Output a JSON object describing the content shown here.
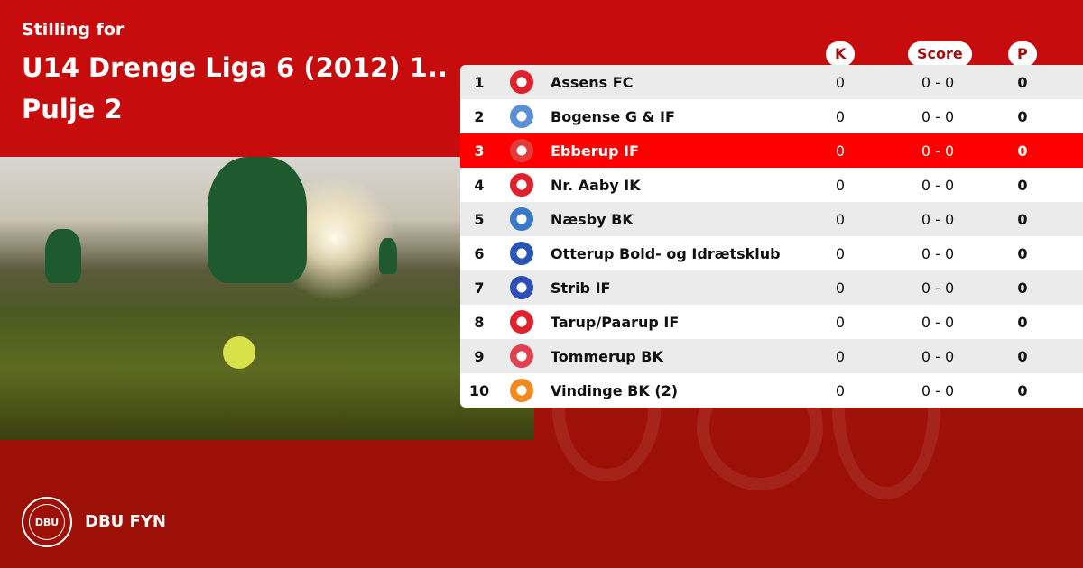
{
  "header": {
    "subtitle": "Stilling for",
    "title": "U14 Drenge Liga 6 (2012) 1.. Pulje 2"
  },
  "columns": {
    "k": "K",
    "score": "Score",
    "p": "P"
  },
  "rows": [
    {
      "rank": "1",
      "team": "Assens FC",
      "k": "0",
      "score": "0 - 0",
      "p": "0",
      "logo_color": "#e0202a"
    },
    {
      "rank": "2",
      "team": "Bogense G & IF",
      "k": "0",
      "score": "0 - 0",
      "p": "0",
      "logo_color": "#5b8fd6"
    },
    {
      "rank": "3",
      "team": "Ebberup IF",
      "k": "0",
      "score": "0 - 0",
      "p": "0",
      "logo_color": "#e53a3a",
      "highlighted": true
    },
    {
      "rank": "4",
      "team": "Nr. Aaby IK",
      "k": "0",
      "score": "0 - 0",
      "p": "0",
      "logo_color": "#e0202a"
    },
    {
      "rank": "5",
      "team": "Næsby BK",
      "k": "0",
      "score": "0 - 0",
      "p": "0",
      "logo_color": "#3a78c8"
    },
    {
      "rank": "6",
      "team": "Otterup Bold- og Idrætsklub",
      "k": "0",
      "score": "0 - 0",
      "p": "0",
      "logo_color": "#2a55b8"
    },
    {
      "rank": "7",
      "team": "Strib IF",
      "k": "0",
      "score": "0 - 0",
      "p": "0",
      "logo_color": "#2f4fb8"
    },
    {
      "rank": "8",
      "team": "Tarup/Paarup IF",
      "k": "0",
      "score": "0 - 0",
      "p": "0",
      "logo_color": "#e0202a"
    },
    {
      "rank": "9",
      "team": "Tommerup BK",
      "k": "0",
      "score": "0 - 0",
      "p": "0",
      "logo_color": "#e04050"
    },
    {
      "rank": "10",
      "team": "Vindinge BK (2)",
      "k": "0",
      "score": "0 - 0",
      "p": "0",
      "logo_color": "#f08a20"
    }
  ],
  "footer": {
    "brand": "DBU FYN",
    "logo_text": "DBU"
  },
  "colors": {
    "primary": "#c60c0c",
    "highlight": "#ff0000",
    "footer": "#9c1007"
  }
}
